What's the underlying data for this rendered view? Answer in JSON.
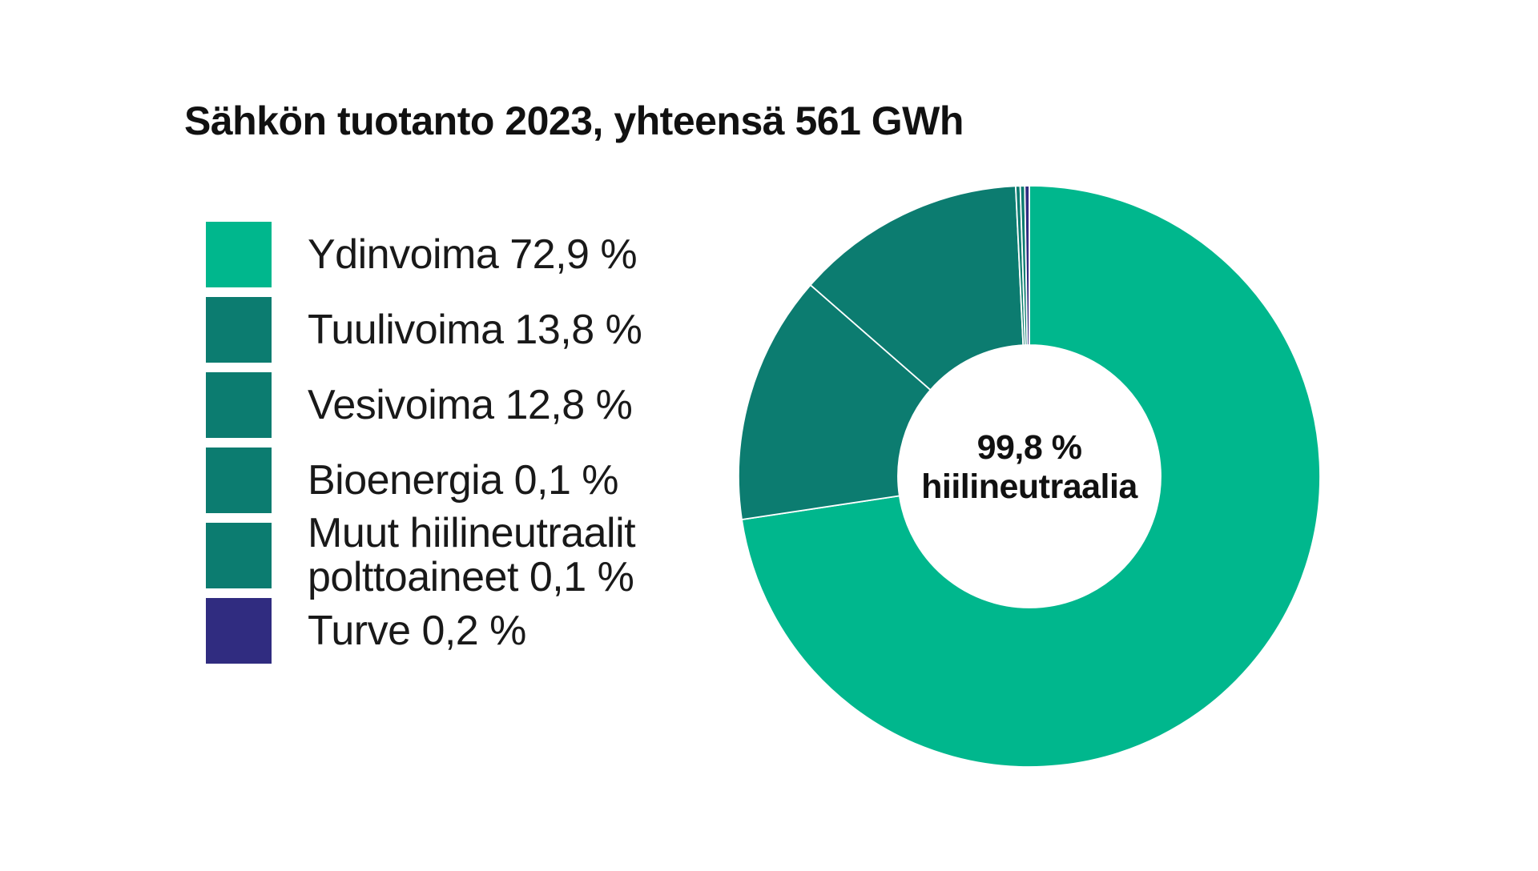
{
  "title": "Sähkön tuotanto 2023, yhteensä 561 GWh",
  "chart_data": {
    "type": "pie",
    "style": "donut",
    "title": "Sähkön tuotanto 2023, yhteensä 561 GWh",
    "total_gwh": 561,
    "year": "2023",
    "unit": "%",
    "legend_position": "left",
    "direction": "clockwise",
    "start_angle_deg": 0,
    "segments": [
      {
        "name": "Ydinvoima",
        "value": 72.9,
        "legend_label": "Ydinvoima 72,9 %",
        "color": "#00b78d"
      },
      {
        "name": "Tuulivoima",
        "value": 13.8,
        "legend_label": "Tuulivoima 13,8 %",
        "color": "#0c7c70"
      },
      {
        "name": "Vesivoima",
        "value": 12.8,
        "legend_label": "Vesivoima 12,8 %",
        "color": "#0c7c70"
      },
      {
        "name": "Bioenergia",
        "value": 0.1,
        "legend_label": "Bioenergia 0,1 %",
        "color": "#0c7c70"
      },
      {
        "name": "Muut hiilineutraalit polttoaineet",
        "value": 0.1,
        "legend_label": "Muut hiilineutraalit\npolttoaineet 0,1 %",
        "color": "#0c7c70"
      },
      {
        "name": "Turve",
        "value": 0.2,
        "legend_label": "Turve 0,2 %",
        "color": "#302c80"
      }
    ],
    "center_label": {
      "line1": "99,8 %",
      "line2": "hiilineutraalia"
    },
    "divider_color": "#ffffff",
    "background_color": "#ffffff"
  }
}
